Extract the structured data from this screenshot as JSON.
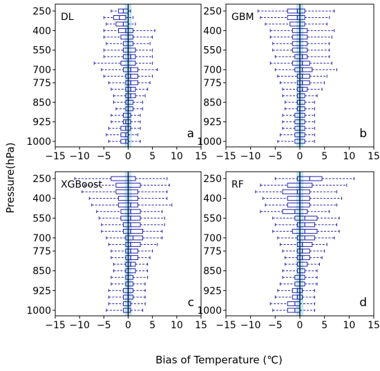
{
  "figure": {
    "ylabel": "Pressure(hPa)",
    "xlabel": "Bias of Temperature (℃)"
  },
  "chart_data": [
    {
      "type": "box",
      "model": "DL",
      "panel_letter": "a",
      "xlim": [
        -15,
        15
      ],
      "xticks": [
        -15,
        -10,
        -5,
        0,
        5,
        10,
        15
      ],
      "ylim": [
        1000,
        250
      ],
      "pressure_levels": [
        250,
        300,
        350,
        400,
        450,
        500,
        550,
        600,
        650,
        700,
        750,
        775,
        800,
        825,
        850,
        875,
        900,
        925,
        950,
        975,
        1000
      ],
      "yticks": [
        250,
        400,
        550,
        700,
        775,
        850,
        925,
        1000
      ],
      "boxes": [
        {
          "p": 250,
          "q1": -2.0,
          "median": -1.0,
          "q3": 0.0,
          "wl": -3.5,
          "wh": 0.5
        },
        {
          "p": 300,
          "q1": -3.0,
          "median": -1.8,
          "q3": -0.5,
          "wl": -5.0,
          "wh": 1.0
        },
        {
          "p": 350,
          "q1": -2.5,
          "median": -1.0,
          "q3": 0.0,
          "wl": -4.5,
          "wh": 1.5
        },
        {
          "p": 400,
          "q1": -2.0,
          "median": -0.5,
          "q3": 1.0,
          "wl": -5.0,
          "wh": 5.5
        },
        {
          "p": 450,
          "q1": -1.5,
          "median": 0.0,
          "q3": 1.0,
          "wl": -5.0,
          "wh": 5.0
        },
        {
          "p": 500,
          "q1": -1.0,
          "median": 0.0,
          "q3": 1.0,
          "wl": -4.5,
          "wh": 4.5
        },
        {
          "p": 550,
          "q1": -1.0,
          "median": 0.0,
          "q3": 1.5,
          "wl": -5.0,
          "wh": 5.0
        },
        {
          "p": 600,
          "q1": -1.0,
          "median": 0.5,
          "q3": 1.5,
          "wl": -5.0,
          "wh": 5.0
        },
        {
          "p": 650,
          "q1": -1.5,
          "median": 0.0,
          "q3": 1.5,
          "wl": -7.0,
          "wh": 5.0
        },
        {
          "p": 700,
          "q1": -1.0,
          "median": 0.5,
          "q3": 2.0,
          "wl": -5.5,
          "wh": 6.0
        },
        {
          "p": 750,
          "q1": -0.5,
          "median": 0.5,
          "q3": 2.0,
          "wl": -5.0,
          "wh": 5.0
        },
        {
          "p": 775,
          "q1": -0.5,
          "median": 0.5,
          "q3": 2.0,
          "wl": -4.0,
          "wh": 4.5
        },
        {
          "p": 800,
          "q1": -0.5,
          "median": 0.5,
          "q3": 1.5,
          "wl": -3.5,
          "wh": 4.0
        },
        {
          "p": 825,
          "q1": -0.5,
          "median": 0.5,
          "q3": 1.5,
          "wl": -3.0,
          "wh": 3.5
        },
        {
          "p": 850,
          "q1": -0.5,
          "median": 0.0,
          "q3": 1.0,
          "wl": -3.0,
          "wh": 3.0
        },
        {
          "p": 875,
          "q1": -0.5,
          "median": 0.0,
          "q3": 1.0,
          "wl": -2.5,
          "wh": 3.0
        },
        {
          "p": 900,
          "q1": -1.0,
          "median": 0.0,
          "q3": 0.5,
          "wl": -3.5,
          "wh": 2.5
        },
        {
          "p": 925,
          "q1": -1.0,
          "median": -0.5,
          "q3": 0.5,
          "wl": -3.5,
          "wh": 2.5
        },
        {
          "p": 950,
          "q1": -1.5,
          "median": -0.5,
          "q3": 0.5,
          "wl": -4.0,
          "wh": 2.5
        },
        {
          "p": 975,
          "q1": -1.5,
          "median": -0.5,
          "q3": 0.0,
          "wl": -4.5,
          "wh": 2.0
        },
        {
          "p": 1000,
          "q1": -1.5,
          "median": -0.5,
          "q3": 0.0,
          "wl": -4.0,
          "wh": 2.5
        }
      ]
    },
    {
      "type": "box",
      "model": "GBM",
      "panel_letter": "b",
      "xlim": [
        -15,
        15
      ],
      "xticks": [
        -15,
        -10,
        -5,
        0,
        5,
        10,
        15
      ],
      "ylim": [
        1000,
        250
      ],
      "pressure_levels": [
        250,
        300,
        350,
        400,
        450,
        500,
        550,
        600,
        650,
        700,
        750,
        775,
        800,
        825,
        850,
        875,
        900,
        925,
        950,
        975,
        1000
      ],
      "yticks": [
        250,
        400,
        550,
        700,
        775,
        850,
        925,
        1000
      ],
      "boxes": [
        {
          "p": 250,
          "q1": -2.5,
          "median": -0.5,
          "q3": 1.0,
          "wl": -8.5,
          "wh": 7.0
        },
        {
          "p": 300,
          "q1": -2.5,
          "median": -0.5,
          "q3": 1.0,
          "wl": -8.0,
          "wh": 6.0
        },
        {
          "p": 350,
          "q1": -2.0,
          "median": 0.0,
          "q3": 1.0,
          "wl": -7.0,
          "wh": 5.5
        },
        {
          "p": 400,
          "q1": -1.5,
          "median": 0.0,
          "q3": 1.5,
          "wl": -6.0,
          "wh": 7.0
        },
        {
          "p": 450,
          "q1": -1.5,
          "median": 0.0,
          "q3": 1.5,
          "wl": -6.0,
          "wh": 6.5
        },
        {
          "p": 500,
          "q1": -1.5,
          "median": 0.0,
          "q3": 1.5,
          "wl": -5.5,
          "wh": 6.0
        },
        {
          "p": 550,
          "q1": -1.5,
          "median": 0.0,
          "q3": 1.5,
          "wl": -5.5,
          "wh": 6.0
        },
        {
          "p": 600,
          "q1": -1.0,
          "median": 0.5,
          "q3": 1.5,
          "wl": -5.0,
          "wh": 6.0
        },
        {
          "p": 650,
          "q1": -1.5,
          "median": 0.5,
          "q3": 2.0,
          "wl": -6.0,
          "wh": 6.5
        },
        {
          "p": 700,
          "q1": -1.0,
          "median": 0.5,
          "q3": 2.5,
          "wl": -5.0,
          "wh": 7.5
        },
        {
          "p": 750,
          "q1": -0.5,
          "median": 0.5,
          "q3": 2.0,
          "wl": -4.5,
          "wh": 5.5
        },
        {
          "p": 775,
          "q1": -0.5,
          "median": 0.5,
          "q3": 2.0,
          "wl": -4.0,
          "wh": 5.0
        },
        {
          "p": 800,
          "q1": -0.5,
          "median": 0.5,
          "q3": 1.5,
          "wl": -3.5,
          "wh": 4.5
        },
        {
          "p": 825,
          "q1": -0.5,
          "median": 0.0,
          "q3": 1.0,
          "wl": -3.5,
          "wh": 3.5
        },
        {
          "p": 850,
          "q1": -0.5,
          "median": 0.0,
          "q3": 1.0,
          "wl": -3.0,
          "wh": 3.0
        },
        {
          "p": 875,
          "q1": -0.5,
          "median": 0.0,
          "q3": 1.0,
          "wl": -3.0,
          "wh": 3.0
        },
        {
          "p": 900,
          "q1": -1.0,
          "median": 0.0,
          "q3": 1.0,
          "wl": -3.5,
          "wh": 3.0
        },
        {
          "p": 925,
          "q1": -1.0,
          "median": 0.0,
          "q3": 1.0,
          "wl": -3.5,
          "wh": 3.0
        },
        {
          "p": 950,
          "q1": -1.0,
          "median": 0.0,
          "q3": 1.0,
          "wl": -3.5,
          "wh": 3.0
        },
        {
          "p": 975,
          "q1": -1.0,
          "median": 0.0,
          "q3": 1.0,
          "wl": -4.0,
          "wh": 3.0
        },
        {
          "p": 1000,
          "q1": -1.0,
          "median": 0.0,
          "q3": 1.0,
          "wl": -4.5,
          "wh": 3.0
        }
      ]
    },
    {
      "type": "box",
      "model": "XGBoost",
      "panel_letter": "c",
      "xlim": [
        -15,
        15
      ],
      "xticks": [
        -15,
        -10,
        -5,
        0,
        5,
        10,
        15
      ],
      "ylim": [
        1000,
        250
      ],
      "pressure_levels": [
        250,
        300,
        350,
        400,
        450,
        500,
        550,
        600,
        650,
        700,
        750,
        775,
        800,
        825,
        850,
        875,
        900,
        925,
        950,
        975,
        1000
      ],
      "yticks": [
        250,
        400,
        550,
        700,
        775,
        850,
        925,
        1000
      ],
      "boxes": [
        {
          "p": 250,
          "q1": -3.5,
          "median": 0.0,
          "q3": 1.5,
          "wl": -11.0,
          "wh": 8.0
        },
        {
          "p": 300,
          "q1": -2.5,
          "median": 0.0,
          "q3": 2.5,
          "wl": -9.0,
          "wh": 8.5
        },
        {
          "p": 350,
          "q1": -2.5,
          "median": 0.0,
          "q3": 2.0,
          "wl": -9.5,
          "wh": 8.0
        },
        {
          "p": 400,
          "q1": -2.0,
          "median": 0.0,
          "q3": 2.0,
          "wl": -8.0,
          "wh": 8.0
        },
        {
          "p": 450,
          "q1": -2.0,
          "median": 0.5,
          "q3": 2.0,
          "wl": -7.5,
          "wh": 9.0
        },
        {
          "p": 500,
          "q1": -1.5,
          "median": 0.5,
          "q3": 2.5,
          "wl": -6.5,
          "wh": 7.0
        },
        {
          "p": 550,
          "q1": -1.5,
          "median": 0.5,
          "q3": 2.5,
          "wl": -6.0,
          "wh": 7.5
        },
        {
          "p": 600,
          "q1": -1.0,
          "median": 0.5,
          "q3": 2.5,
          "wl": -5.5,
          "wh": 7.5
        },
        {
          "p": 650,
          "q1": -1.0,
          "median": 0.5,
          "q3": 3.0,
          "wl": -5.5,
          "wh": 7.0
        },
        {
          "p": 700,
          "q1": -0.5,
          "median": 1.0,
          "q3": 3.0,
          "wl": -4.5,
          "wh": 7.0
        },
        {
          "p": 750,
          "q1": -0.5,
          "median": 0.5,
          "q3": 2.5,
          "wl": -4.0,
          "wh": 6.0
        },
        {
          "p": 775,
          "q1": -0.5,
          "median": 0.5,
          "q3": 2.0,
          "wl": -3.5,
          "wh": 5.0
        },
        {
          "p": 800,
          "q1": -0.5,
          "median": 0.5,
          "q3": 2.0,
          "wl": -3.5,
          "wh": 4.5
        },
        {
          "p": 825,
          "q1": -0.5,
          "median": 0.5,
          "q3": 1.5,
          "wl": -3.0,
          "wh": 4.0
        },
        {
          "p": 850,
          "q1": -0.5,
          "median": 0.0,
          "q3": 1.5,
          "wl": -3.0,
          "wh": 4.0
        },
        {
          "p": 875,
          "q1": -0.5,
          "median": 0.0,
          "q3": 1.0,
          "wl": -3.5,
          "wh": 4.0
        },
        {
          "p": 900,
          "q1": -0.5,
          "median": 0.0,
          "q3": 1.0,
          "wl": -3.5,
          "wh": 3.5
        },
        {
          "p": 925,
          "q1": -1.0,
          "median": 0.0,
          "q3": 1.0,
          "wl": -4.0,
          "wh": 3.5
        },
        {
          "p": 950,
          "q1": -1.0,
          "median": 0.0,
          "q3": 1.0,
          "wl": -4.0,
          "wh": 3.5
        },
        {
          "p": 975,
          "q1": -1.0,
          "median": 0.0,
          "q3": 0.5,
          "wl": -4.0,
          "wh": 3.5
        },
        {
          "p": 1000,
          "q1": -1.0,
          "median": 0.0,
          "q3": 0.5,
          "wl": -4.5,
          "wh": 3.0
        }
      ]
    },
    {
      "type": "box",
      "model": "RF",
      "panel_letter": "d",
      "xlim": [
        -15,
        15
      ],
      "xticks": [
        -15,
        -10,
        -5,
        0,
        5,
        10,
        15
      ],
      "ylim": [
        1000,
        250
      ],
      "pressure_levels": [
        250,
        300,
        350,
        400,
        450,
        500,
        550,
        600,
        650,
        700,
        750,
        775,
        800,
        825,
        850,
        875,
        900,
        925,
        950,
        975,
        1000
      ],
      "yticks": [
        250,
        400,
        550,
        700,
        775,
        850,
        925,
        1000
      ],
      "boxes": [
        {
          "p": 250,
          "q1": -0.5,
          "median": 2.0,
          "q3": 4.5,
          "wl": -5.0,
          "wh": 11.0
        },
        {
          "p": 300,
          "q1": -2.5,
          "median": 0.0,
          "q3": 2.5,
          "wl": -8.0,
          "wh": 9.5
        },
        {
          "p": 350,
          "q1": -3.5,
          "median": -0.5,
          "q3": 2.0,
          "wl": -9.0,
          "wh": 7.5
        },
        {
          "p": 400,
          "q1": -2.5,
          "median": 0.0,
          "q3": 2.0,
          "wl": -7.5,
          "wh": 8.5
        },
        {
          "p": 450,
          "q1": -2.5,
          "median": 0.0,
          "q3": 2.0,
          "wl": -7.0,
          "wh": 7.5
        },
        {
          "p": 500,
          "q1": -3.5,
          "median": -1.0,
          "q3": 1.5,
          "wl": -8.0,
          "wh": 6.0
        },
        {
          "p": 550,
          "q1": -1.0,
          "median": 1.0,
          "q3": 3.5,
          "wl": -5.5,
          "wh": 8.0
        },
        {
          "p": 600,
          "q1": -0.5,
          "median": 1.0,
          "q3": 3.0,
          "wl": -5.0,
          "wh": 7.5
        },
        {
          "p": 650,
          "q1": -1.5,
          "median": 1.0,
          "q3": 3.5,
          "wl": -5.5,
          "wh": 8.0
        },
        {
          "p": 700,
          "q1": -0.5,
          "median": 1.0,
          "q3": 3.0,
          "wl": -4.5,
          "wh": 7.0
        },
        {
          "p": 750,
          "q1": -0.5,
          "median": 0.5,
          "q3": 2.5,
          "wl": -4.0,
          "wh": 5.5
        },
        {
          "p": 775,
          "q1": -0.5,
          "median": 0.5,
          "q3": 2.0,
          "wl": -3.5,
          "wh": 5.0
        },
        {
          "p": 800,
          "q1": -0.5,
          "median": 0.5,
          "q3": 2.0,
          "wl": -3.0,
          "wh": 4.5
        },
        {
          "p": 825,
          "q1": -0.5,
          "median": 0.0,
          "q3": 1.5,
          "wl": -3.0,
          "wh": 4.0
        },
        {
          "p": 850,
          "q1": -0.5,
          "median": 0.0,
          "q3": 1.0,
          "wl": -3.5,
          "wh": 3.5
        },
        {
          "p": 875,
          "q1": -1.0,
          "median": 0.0,
          "q3": 1.0,
          "wl": -3.5,
          "wh": 3.5
        },
        {
          "p": 900,
          "q1": -1.0,
          "median": 0.0,
          "q3": 1.0,
          "wl": -4.0,
          "wh": 3.5
        },
        {
          "p": 925,
          "q1": -1.5,
          "median": -0.5,
          "q3": 0.5,
          "wl": -4.5,
          "wh": 3.0
        },
        {
          "p": 950,
          "q1": -1.5,
          "median": -0.5,
          "q3": 0.5,
          "wl": -5.0,
          "wh": 3.0
        },
        {
          "p": 975,
          "q1": -2.5,
          "median": -1.0,
          "q3": 0.0,
          "wl": -6.0,
          "wh": 3.0
        },
        {
          "p": 1000,
          "q1": -2.5,
          "median": -1.0,
          "q3": 0.0,
          "wl": -5.5,
          "wh": 3.0
        }
      ]
    }
  ],
  "colors": {
    "box_edge": "#1f1fa8",
    "whisker": "#1f1fa8",
    "median": "#1f1fa8",
    "zero_band": "#a8dff0",
    "zero_line": "#000000",
    "axis": "#000000"
  }
}
